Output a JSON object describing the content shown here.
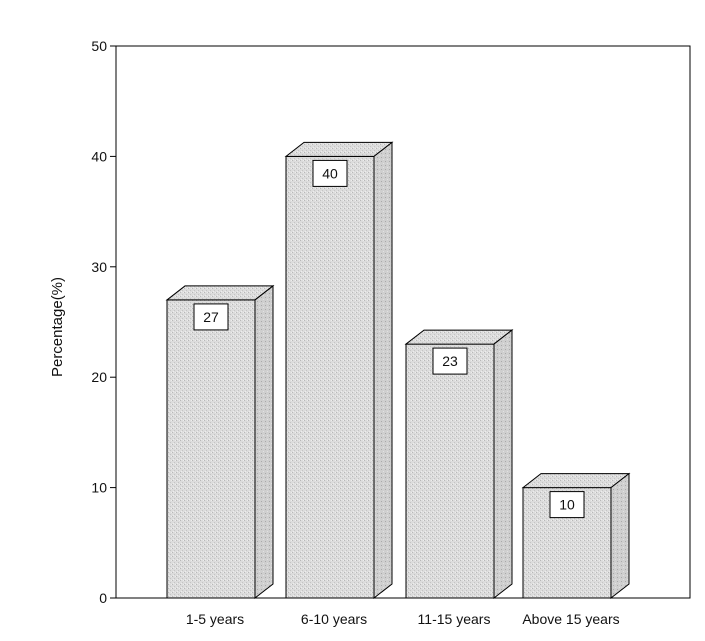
{
  "chart_data": {
    "type": "bar",
    "style": "3d",
    "categories": [
      "1-5 years",
      "6-10 years",
      "11-15 years",
      "Above 15 years"
    ],
    "values": [
      27,
      40,
      23,
      10
    ],
    "data_labels": [
      "27",
      "40",
      "23",
      "10"
    ],
    "title": "",
    "xlabel": "",
    "ylabel": "Percentage(%)",
    "ylim": [
      0,
      50
    ],
    "yticks": [
      0,
      10,
      20,
      30,
      40,
      50
    ],
    "ytick_labels": [
      "0",
      "10",
      "20",
      "30",
      "40",
      "50"
    ],
    "grid": false,
    "legend": "none",
    "colors": {
      "bar_fill": "#d9d9d9",
      "bar_side": "#c4c4c4",
      "bar_top": "#e6e6e6",
      "stroke": "#000000"
    }
  }
}
